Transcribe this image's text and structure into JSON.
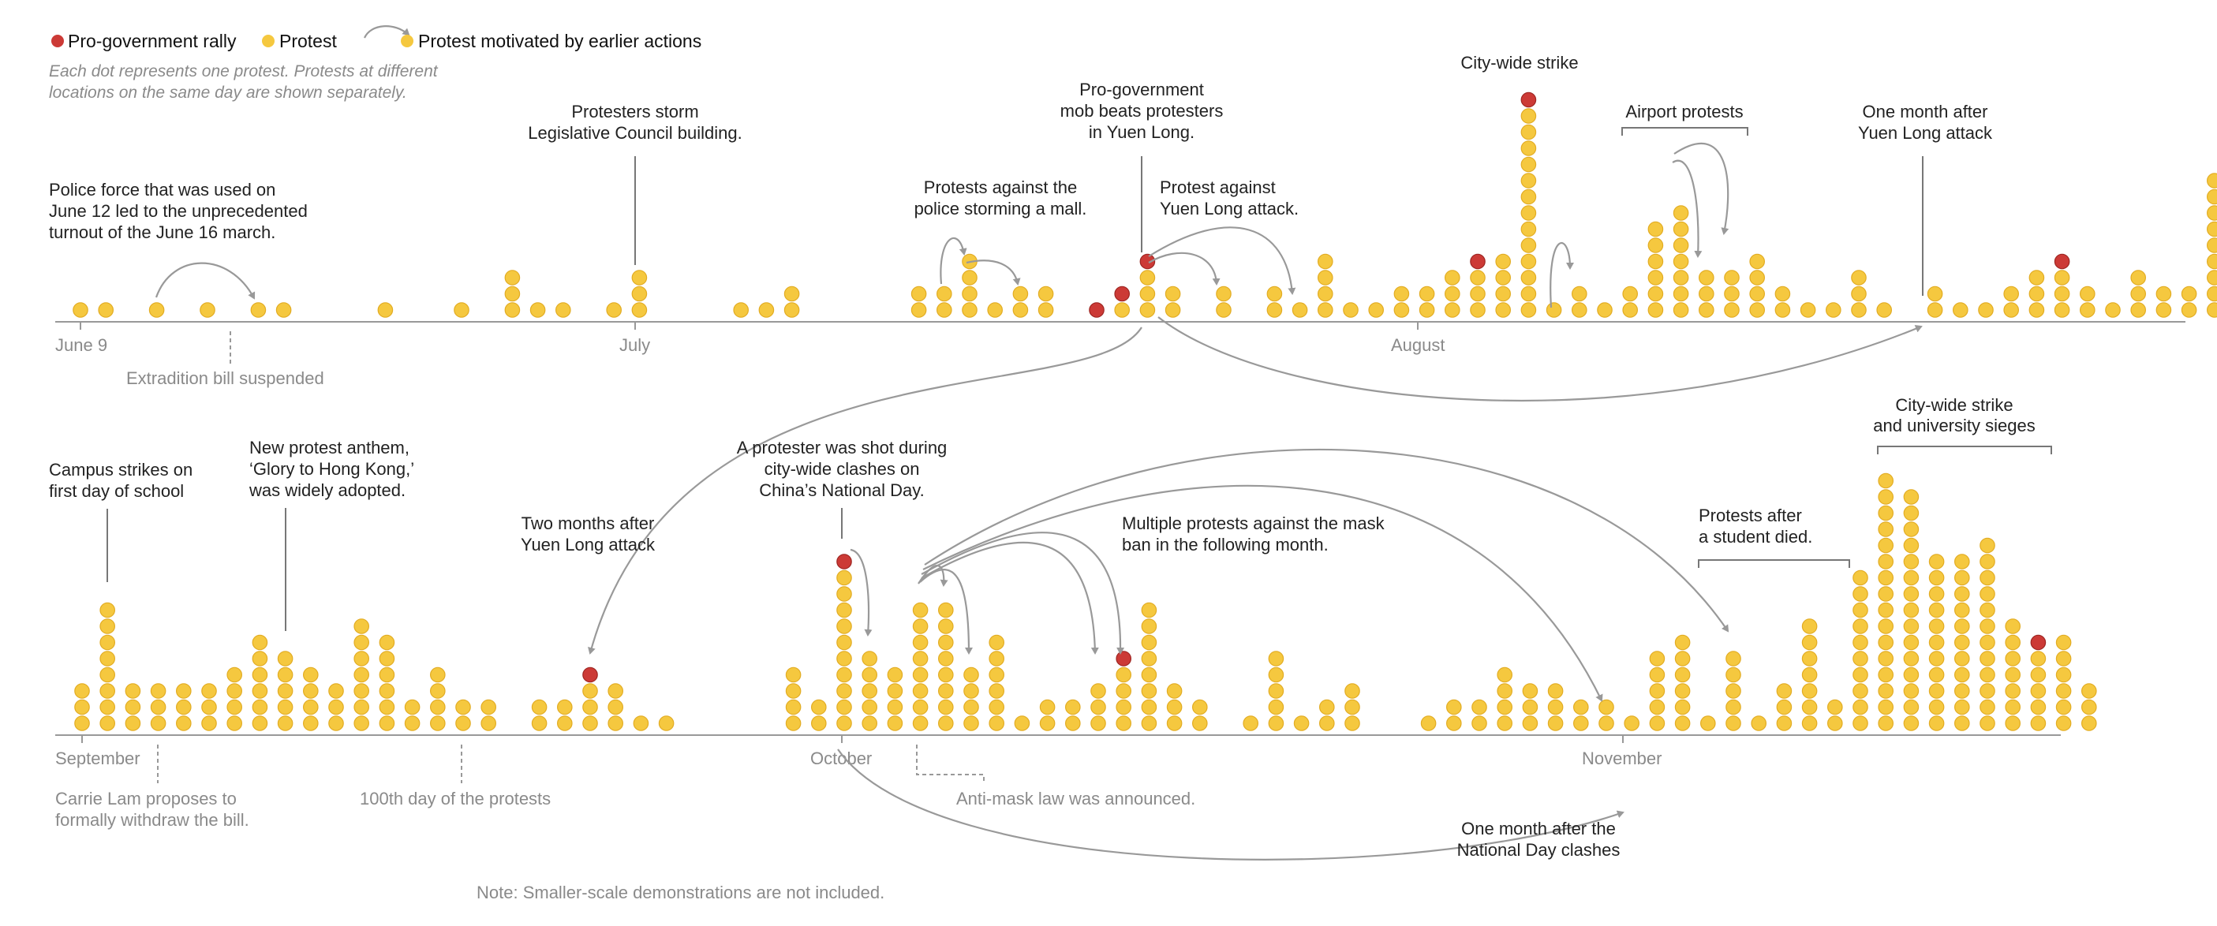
{
  "legend": {
    "rally": "Pro-government rally",
    "protest": "Protest",
    "motivated": "Protest motivated by earlier actions",
    "note_line1": "Each dot represents one protest. Protests at different",
    "note_line2": "locations on the same day are shown separately."
  },
  "colors": {
    "protest": "#f5c83f",
    "protest_stroke": "#e2ac23",
    "rally": "#cc3a36",
    "rally_stroke": "#9e2622",
    "axis": "#999999",
    "arrow": "#999999"
  },
  "footnote": "Note: Smaller-scale demonstrations are not included.",
  "chart_data": [
    {
      "type": "dot-column",
      "title": "",
      "xlabel": "",
      "ylabel": "",
      "x_axis": "day (June 9 – August 31)",
      "tick_labels": [
        "June 9",
        "July",
        "August"
      ],
      "day_counts": [
        {
          "day": 0,
          "protests": 1
        },
        {
          "day": 1,
          "protests": 1
        },
        {
          "day": 3,
          "protests": 1
        },
        {
          "day": 5,
          "protests": 1
        },
        {
          "day": 7,
          "protests": 1
        },
        {
          "day": 8,
          "protests": 1
        },
        {
          "day": 12,
          "protests": 1
        },
        {
          "day": 15,
          "protests": 1
        },
        {
          "day": 17,
          "protests": 3
        },
        {
          "day": 18,
          "protests": 1
        },
        {
          "day": 19,
          "protests": 1
        },
        {
          "day": 21,
          "protests": 1
        },
        {
          "day": 22,
          "protests": 3
        },
        {
          "day": 26,
          "protests": 1
        },
        {
          "day": 27,
          "protests": 1
        },
        {
          "day": 28,
          "protests": 2
        },
        {
          "day": 33,
          "protests": 2
        },
        {
          "day": 34,
          "protests": 2
        },
        {
          "day": 35,
          "protests": 4
        },
        {
          "day": 36,
          "protests": 1
        },
        {
          "day": 37,
          "protests": 2
        },
        {
          "day": 38,
          "protests": 2
        },
        {
          "day": 40,
          "protests": 0,
          "rallies": 1
        },
        {
          "day": 41,
          "protests": 1,
          "rallies": 1
        },
        {
          "day": 42,
          "protests": 3,
          "rallies": 1
        },
        {
          "day": 43,
          "protests": 2
        },
        {
          "day": 45,
          "protests": 2
        },
        {
          "day": 47,
          "protests": 2
        },
        {
          "day": 48,
          "protests": 1
        },
        {
          "day": 49,
          "protests": 4
        },
        {
          "day": 50,
          "protests": 1
        },
        {
          "day": 51,
          "protests": 1
        },
        {
          "day": 52,
          "protests": 2
        },
        {
          "day": 53,
          "protests": 2
        },
        {
          "day": 54,
          "protests": 3
        },
        {
          "day": 55,
          "protests": 3,
          "rallies": 1
        },
        {
          "day": 56,
          "protests": 4
        },
        {
          "day": 57,
          "protests": 13,
          "rallies": 1
        },
        {
          "day": 58,
          "protests": 1
        },
        {
          "day": 59,
          "protests": 2
        },
        {
          "day": 60,
          "protests": 1
        },
        {
          "day": 61,
          "protests": 2
        },
        {
          "day": 62,
          "protests": 6
        },
        {
          "day": 63,
          "protests": 7
        },
        {
          "day": 64,
          "protests": 3
        },
        {
          "day": 65,
          "protests": 3
        },
        {
          "day": 66,
          "protests": 4
        },
        {
          "day": 67,
          "protests": 2
        },
        {
          "day": 68,
          "protests": 1
        },
        {
          "day": 69,
          "protests": 1
        },
        {
          "day": 70,
          "protests": 3
        },
        {
          "day": 71,
          "protests": 1
        },
        {
          "day": 73,
          "protests": 2
        },
        {
          "day": 74,
          "protests": 1
        },
        {
          "day": 75,
          "protests": 1
        },
        {
          "day": 76,
          "protests": 2
        },
        {
          "day": 77,
          "protests": 3
        },
        {
          "day": 78,
          "protests": 3,
          "rallies": 1
        },
        {
          "day": 79,
          "protests": 2
        },
        {
          "day": 80,
          "protests": 1
        },
        {
          "day": 81,
          "protests": 3
        },
        {
          "day": 82,
          "protests": 2
        },
        {
          "day": 83,
          "protests": 2
        },
        {
          "day": 84,
          "protests": 9
        }
      ],
      "annotations": [
        {
          "id": "a1",
          "lines": [
            "Police force that was used on",
            "June 12 led to the unprecedented",
            "turnout of the June 16 march."
          ]
        },
        {
          "id": "a2",
          "lines": [
            "Extradition bill suspended"
          ]
        },
        {
          "id": "a3",
          "lines": [
            "Protesters storm",
            "Legislative Council building."
          ]
        },
        {
          "id": "a4",
          "lines": [
            "Protests against the",
            "police storming a mall."
          ]
        },
        {
          "id": "a5",
          "lines": [
            "Pro-government",
            "mob beats protesters",
            "in Yuen Long."
          ]
        },
        {
          "id": "a6",
          "lines": [
            "Protest against",
            "Yuen Long attack."
          ]
        },
        {
          "id": "a7",
          "lines": [
            "City-wide strike"
          ]
        },
        {
          "id": "a8",
          "lines": [
            "Airport protests"
          ]
        },
        {
          "id": "a9",
          "lines": [
            "One month after",
            "Yuen Long attack"
          ]
        }
      ]
    },
    {
      "type": "dot-column",
      "title": "",
      "xlabel": "",
      "ylabel": "",
      "x_axis": "day (September 1 – November 23)",
      "tick_labels": [
        "September",
        "October",
        "November"
      ],
      "day_counts": [
        {
          "day": 0,
          "protests": 3
        },
        {
          "day": 1,
          "protests": 8
        },
        {
          "day": 2,
          "protests": 3
        },
        {
          "day": 3,
          "protests": 3
        },
        {
          "day": 4,
          "protests": 3
        },
        {
          "day": 5,
          "protests": 3
        },
        {
          "day": 6,
          "protests": 4
        },
        {
          "day": 7,
          "protests": 6
        },
        {
          "day": 8,
          "protests": 5
        },
        {
          "day": 9,
          "protests": 4
        },
        {
          "day": 10,
          "protests": 3
        },
        {
          "day": 11,
          "protests": 7
        },
        {
          "day": 12,
          "protests": 6
        },
        {
          "day": 13,
          "protests": 2
        },
        {
          "day": 14,
          "protests": 4
        },
        {
          "day": 15,
          "protests": 2
        },
        {
          "day": 16,
          "protests": 2
        },
        {
          "day": 17,
          "protests": 0
        },
        {
          "day": 18,
          "protests": 2
        },
        {
          "day": 19,
          "protests": 2
        },
        {
          "day": 20,
          "protests": 3,
          "rallies": 1
        },
        {
          "day": 21,
          "protests": 3
        },
        {
          "day": 22,
          "protests": 1
        },
        {
          "day": 23,
          "protests": 1
        },
        {
          "day": 24,
          "protests": 0
        },
        {
          "day": 25,
          "protests": 0
        },
        {
          "day": 26,
          "protests": 0
        },
        {
          "day": 27,
          "protests": 0
        },
        {
          "day": 28,
          "protests": 4
        },
        {
          "day": 29,
          "protests": 2
        },
        {
          "day": 30,
          "protests": 10,
          "rallies": 1
        },
        {
          "day": 31,
          "protests": 5
        },
        {
          "day": 32,
          "protests": 4
        },
        {
          "day": 33,
          "protests": 8
        },
        {
          "day": 34,
          "protests": 8
        },
        {
          "day": 35,
          "protests": 4
        },
        {
          "day": 36,
          "protests": 6
        },
        {
          "day": 37,
          "protests": 1
        },
        {
          "day": 38,
          "protests": 2
        },
        {
          "day": 39,
          "protests": 2
        },
        {
          "day": 40,
          "protests": 3
        },
        {
          "day": 41,
          "protests": 4,
          "rallies": 1
        },
        {
          "day": 42,
          "protests": 8
        },
        {
          "day": 43,
          "protests": 3
        },
        {
          "day": 44,
          "protests": 2
        },
        {
          "day": 46,
          "protests": 1
        },
        {
          "day": 47,
          "protests": 5
        },
        {
          "day": 48,
          "protests": 1
        },
        {
          "day": 49,
          "protests": 2
        },
        {
          "day": 50,
          "protests": 3
        },
        {
          "day": 53,
          "protests": 1
        },
        {
          "day": 54,
          "protests": 2
        },
        {
          "day": 55,
          "protests": 2
        },
        {
          "day": 56,
          "protests": 4
        },
        {
          "day": 57,
          "protests": 3
        },
        {
          "day": 58,
          "protests": 3
        },
        {
          "day": 59,
          "protests": 2
        },
        {
          "day": 60,
          "protests": 2
        },
        {
          "day": 61,
          "protests": 1
        },
        {
          "day": 62,
          "protests": 5
        },
        {
          "day": 63,
          "protests": 6
        },
        {
          "day": 64,
          "protests": 1
        },
        {
          "day": 65,
          "protests": 5
        },
        {
          "day": 66,
          "protests": 1
        },
        {
          "day": 67,
          "protests": 3
        },
        {
          "day": 68,
          "protests": 7
        },
        {
          "day": 69,
          "protests": 2
        },
        {
          "day": 70,
          "protests": 10
        },
        {
          "day": 71,
          "protests": 16
        },
        {
          "day": 72,
          "protests": 15
        },
        {
          "day": 73,
          "protests": 11
        },
        {
          "day": 74,
          "protests": 11
        },
        {
          "day": 75,
          "protests": 12
        },
        {
          "day": 76,
          "protests": 7
        },
        {
          "day": 77,
          "protests": 5,
          "rallies": 1
        },
        {
          "day": 78,
          "protests": 6
        },
        {
          "day": 79,
          "protests": 3
        }
      ],
      "annotations": [
        {
          "id": "b1",
          "lines": [
            "Campus strikes on",
            "first day of school"
          ]
        },
        {
          "id": "b2",
          "lines": [
            "New protest anthem,",
            "‘Glory to Hong Kong,’",
            "was widely adopted."
          ]
        },
        {
          "id": "b3",
          "lines": [
            "Carrie Lam proposes to",
            "formally withdraw the bill."
          ]
        },
        {
          "id": "b4",
          "lines": [
            "100th day of the protests"
          ]
        },
        {
          "id": "b5",
          "lines": [
            "Two months after",
            "Yuen Long attack"
          ]
        },
        {
          "id": "b6",
          "lines": [
            "A protester was shot during",
            "city-wide clashes on",
            "China’s National Day."
          ]
        },
        {
          "id": "b7",
          "lines": [
            "Multiple protests against the mask",
            "ban in the following month."
          ]
        },
        {
          "id": "b8",
          "lines": [
            "Anti-mask law was announced."
          ]
        },
        {
          "id": "b9",
          "lines": [
            "One month after the",
            "National Day clashes"
          ]
        },
        {
          "id": "b10",
          "lines": [
            "Protests after",
            "a student died."
          ]
        },
        {
          "id": "b11",
          "lines": [
            "City-wide strike",
            "and university sieges"
          ]
        }
      ]
    }
  ]
}
